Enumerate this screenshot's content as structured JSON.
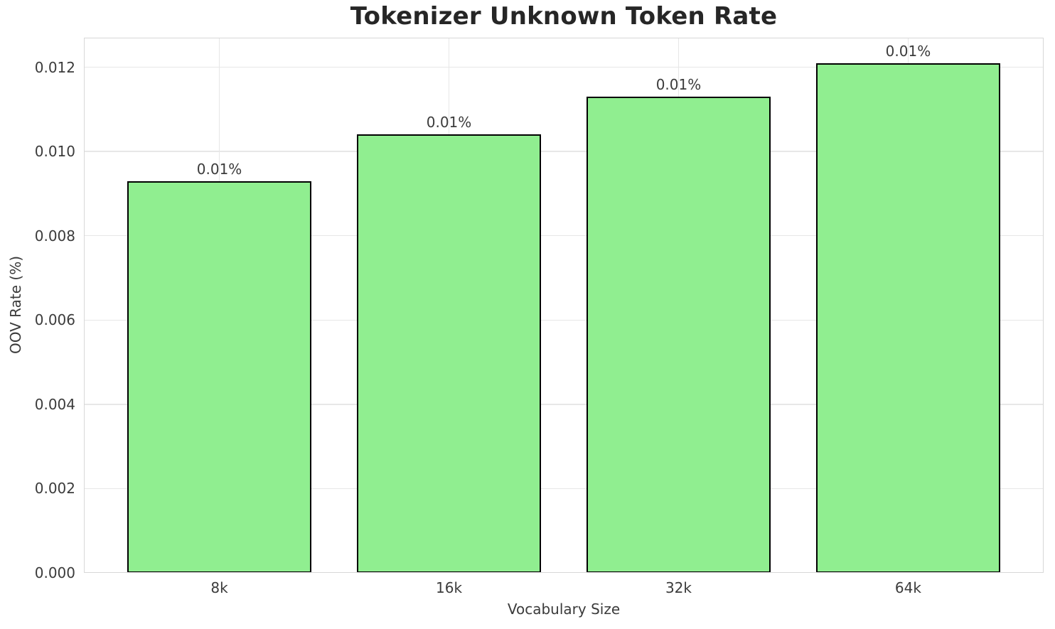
{
  "chart_data": {
    "type": "bar",
    "title": "Tokenizer Unknown Token Rate",
    "xlabel": "Vocabulary Size",
    "ylabel": "OOV Rate (%)",
    "categories": [
      "8k",
      "16k",
      "32k",
      "64k"
    ],
    "values": [
      0.0093,
      0.0104,
      0.0113,
      0.0121
    ],
    "bar_labels": [
      "0.01%",
      "0.01%",
      "0.01%",
      "0.01%"
    ],
    "ylim": [
      0,
      0.0127
    ],
    "ytick_values": [
      0,
      0.002,
      0.004,
      0.006,
      0.008,
      0.01,
      0.012
    ],
    "ytick_labels": [
      "0.000",
      "0.002",
      "0.004",
      "0.006",
      "0.008",
      "0.010",
      "0.012"
    ],
    "grid": true,
    "legend": "none",
    "colors": {
      "bar_fill": "#90ee90",
      "bar_edge": "#000000",
      "grid": "#e7e7e7",
      "axes_edge": "#d8d8d8",
      "tick_text": "#3b3b3b",
      "title_text": "#262626",
      "background": "#ffffff"
    }
  }
}
